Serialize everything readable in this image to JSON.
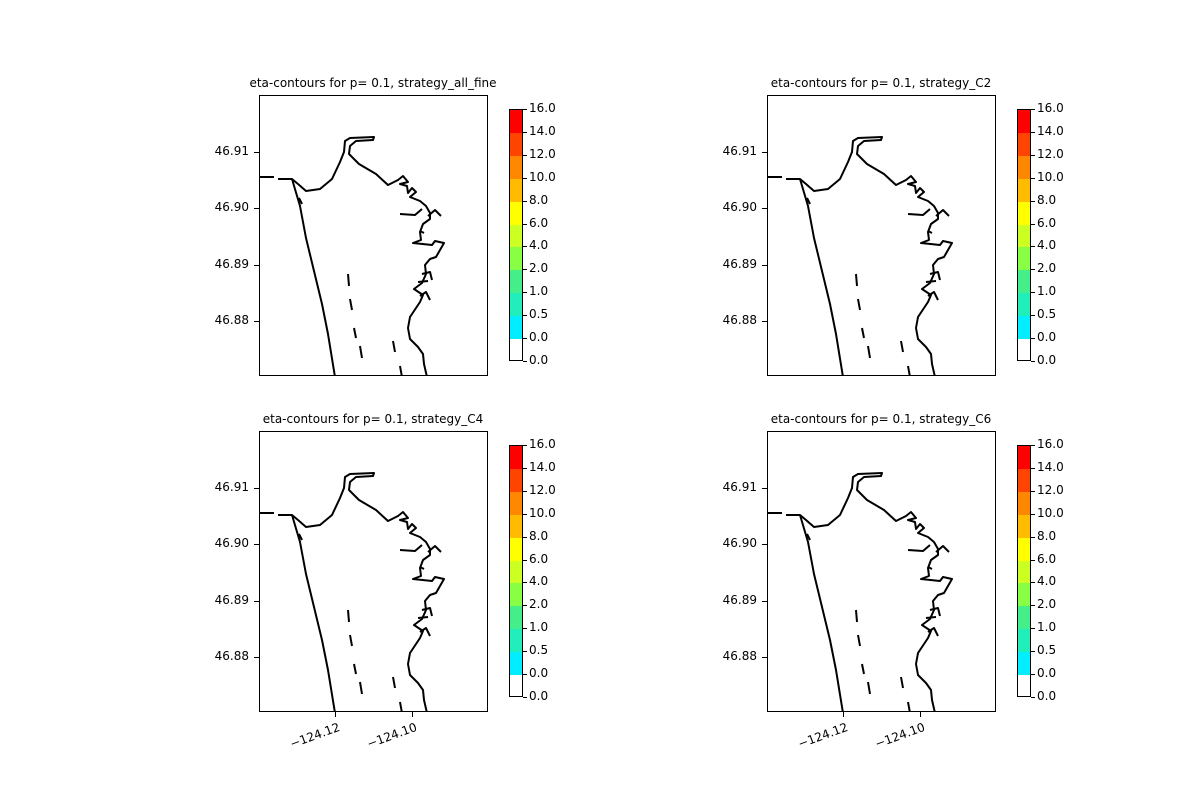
{
  "chart_data": [
    {
      "type": "contour-map",
      "title": "eta-contours for p= 0.1, strategy_all_fine",
      "yticks": [
        "46.91",
        "46.90",
        "46.89",
        "46.88"
      ],
      "xticks": [],
      "colorbar": {
        "levels": [
          "16.0",
          "14.0",
          "12.0",
          "10.0",
          "8.0",
          "6.0",
          "4.0",
          "2.0",
          "1.0",
          "0.5",
          "0.0",
          "0.0"
        ],
        "colors": [
          "#ff0000",
          "#ff4400",
          "#ff8800",
          "#ffbb00",
          "#ffff00",
          "#ccff22",
          "#88ff44",
          "#44ee88",
          "#22eebb",
          "#00eeff",
          "#ffffff"
        ]
      }
    },
    {
      "type": "contour-map",
      "title": "eta-contours for p= 0.1, strategy_C2",
      "yticks": [
        "46.91",
        "46.90",
        "46.89",
        "46.88"
      ],
      "xticks": [],
      "colorbar": {
        "levels": [
          "16.0",
          "14.0",
          "12.0",
          "10.0",
          "8.0",
          "6.0",
          "4.0",
          "2.0",
          "1.0",
          "0.5",
          "0.0",
          "0.0"
        ],
        "colors": [
          "#ff0000",
          "#ff4400",
          "#ff8800",
          "#ffbb00",
          "#ffff00",
          "#ccff22",
          "#88ff44",
          "#44ee88",
          "#22eebb",
          "#00eeff",
          "#ffffff"
        ]
      }
    },
    {
      "type": "contour-map",
      "title": "eta-contours for p= 0.1, strategy_C4",
      "yticks": [
        "46.91",
        "46.90",
        "46.89",
        "46.88"
      ],
      "xticks": [
        "−124.12",
        "−124.10"
      ],
      "colorbar": {
        "levels": [
          "16.0",
          "14.0",
          "12.0",
          "10.0",
          "8.0",
          "6.0",
          "4.0",
          "2.0",
          "1.0",
          "0.5",
          "0.0",
          "0.0"
        ],
        "colors": [
          "#ff0000",
          "#ff4400",
          "#ff8800",
          "#ffbb00",
          "#ffff00",
          "#ccff22",
          "#88ff44",
          "#44ee88",
          "#22eebb",
          "#00eeff",
          "#ffffff"
        ]
      }
    },
    {
      "type": "contour-map",
      "title": "eta-contours for p= 0.1, strategy_C6",
      "yticks": [
        "46.91",
        "46.90",
        "46.89",
        "46.88"
      ],
      "xticks": [
        "−124.12",
        "−124.10"
      ],
      "colorbar": {
        "levels": [
          "16.0",
          "14.0",
          "12.0",
          "10.0",
          "8.0",
          "6.0",
          "4.0",
          "2.0",
          "1.0",
          "0.5",
          "0.0",
          "0.0"
        ],
        "colors": [
          "#ff0000",
          "#ff4400",
          "#ff8800",
          "#ffbb00",
          "#ffff00",
          "#ccff22",
          "#88ff44",
          "#44ee88",
          "#22eebb",
          "#00eeff",
          "#ffffff"
        ]
      }
    }
  ]
}
